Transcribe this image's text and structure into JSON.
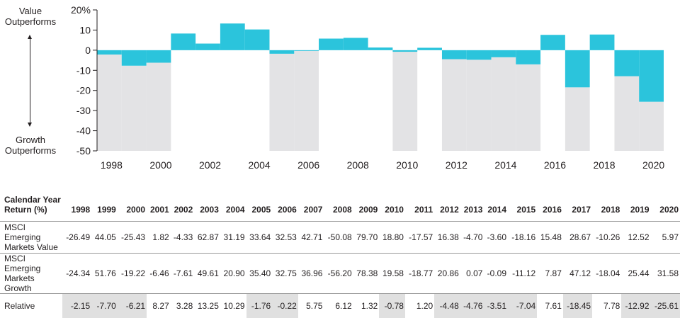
{
  "side_labels": {
    "top": "Value\nOutperforms",
    "bottom": "Growth\nOutperforms"
  },
  "colors": {
    "relative_bar": "#2bc4dc",
    "growth_area": "#e3e3e5",
    "axis": "#231f20"
  },
  "chart_data": {
    "type": "bar",
    "title": "",
    "xlabel": "",
    "ylabel": "",
    "ylim": [
      -50,
      20
    ],
    "yticks": [
      20,
      10,
      0,
      -10,
      -20,
      -30,
      -40,
      -50
    ],
    "ytick_labels": [
      "20%",
      "10",
      "0",
      "-10",
      "-20",
      "-30",
      "-40",
      "-50"
    ],
    "xtick_labels": [
      "1998",
      "2000",
      "2002",
      "2004",
      "2006",
      "2008",
      "2010",
      "2012",
      "2014",
      "2016",
      "2018",
      "2020"
    ],
    "categories": [
      "1998",
      "1999",
      "2000",
      "2001",
      "2002",
      "2003",
      "2004",
      "2005",
      "2006",
      "2007",
      "2008",
      "2009",
      "2010",
      "2011",
      "2012",
      "2013",
      "2014",
      "2015",
      "2016",
      "2017",
      "2018",
      "2019",
      "2020"
    ],
    "series": [
      {
        "name": "Relative",
        "values": [
          -2.15,
          -7.7,
          -6.21,
          8.27,
          3.28,
          13.25,
          10.29,
          -1.76,
          -0.22,
          5.75,
          6.12,
          1.32,
          -0.78,
          1.2,
          -4.48,
          -4.76,
          -3.51,
          -7.04,
          7.61,
          -18.45,
          7.78,
          -12.92,
          -25.61
        ]
      }
    ]
  },
  "table": {
    "header_label": "Calendar Year\nReturn (%)",
    "years": [
      "1998",
      "1999",
      "2000",
      "2001",
      "2002",
      "2003",
      "2004",
      "2005",
      "2006",
      "2007",
      "2008",
      "2009",
      "2010",
      "2011",
      "2012",
      "2013",
      "2014",
      "2015",
      "2016",
      "2017",
      "2018",
      "2019",
      "2020"
    ],
    "rows": [
      {
        "label": "MSCI Emerging\nMarkets Value",
        "values": [
          "-26.49",
          "44.05",
          "-25.43",
          "1.82",
          "-4.33",
          "62.87",
          "31.19",
          "33.64",
          "32.53",
          "42.71",
          "-50.08",
          "79.70",
          "18.80",
          "-17.57",
          "16.38",
          "-4.70",
          "-3.60",
          "-18.16",
          "15.48",
          "28.67",
          "-10.26",
          "12.52",
          "5.97"
        ]
      },
      {
        "label": "MSCI Emerging\nMarkets Growth",
        "values": [
          "-24.34",
          "51.76",
          "-19.22",
          "-6.46",
          "-7.61",
          "49.61",
          "20.90",
          "35.40",
          "32.75",
          "36.96",
          "-56.20",
          "78.38",
          "19.58",
          "-18.77",
          "20.86",
          "0.07",
          "-0.09",
          "-11.12",
          "7.87",
          "47.12",
          "-18.04",
          "25.44",
          "31.58"
        ]
      },
      {
        "label": "Relative",
        "values": [
          "-2.15",
          "-7.70",
          "-6.21",
          "8.27",
          "3.28",
          "13.25",
          "10.29",
          "-1.76",
          "-0.22",
          "5.75",
          "6.12",
          "1.32",
          "-0.78",
          "1.20",
          "-4.48",
          "-4.76",
          "-3.51",
          "-7.04",
          "7.61",
          "-18.45",
          "7.78",
          "-12.92",
          "-25.61"
        ]
      }
    ]
  }
}
